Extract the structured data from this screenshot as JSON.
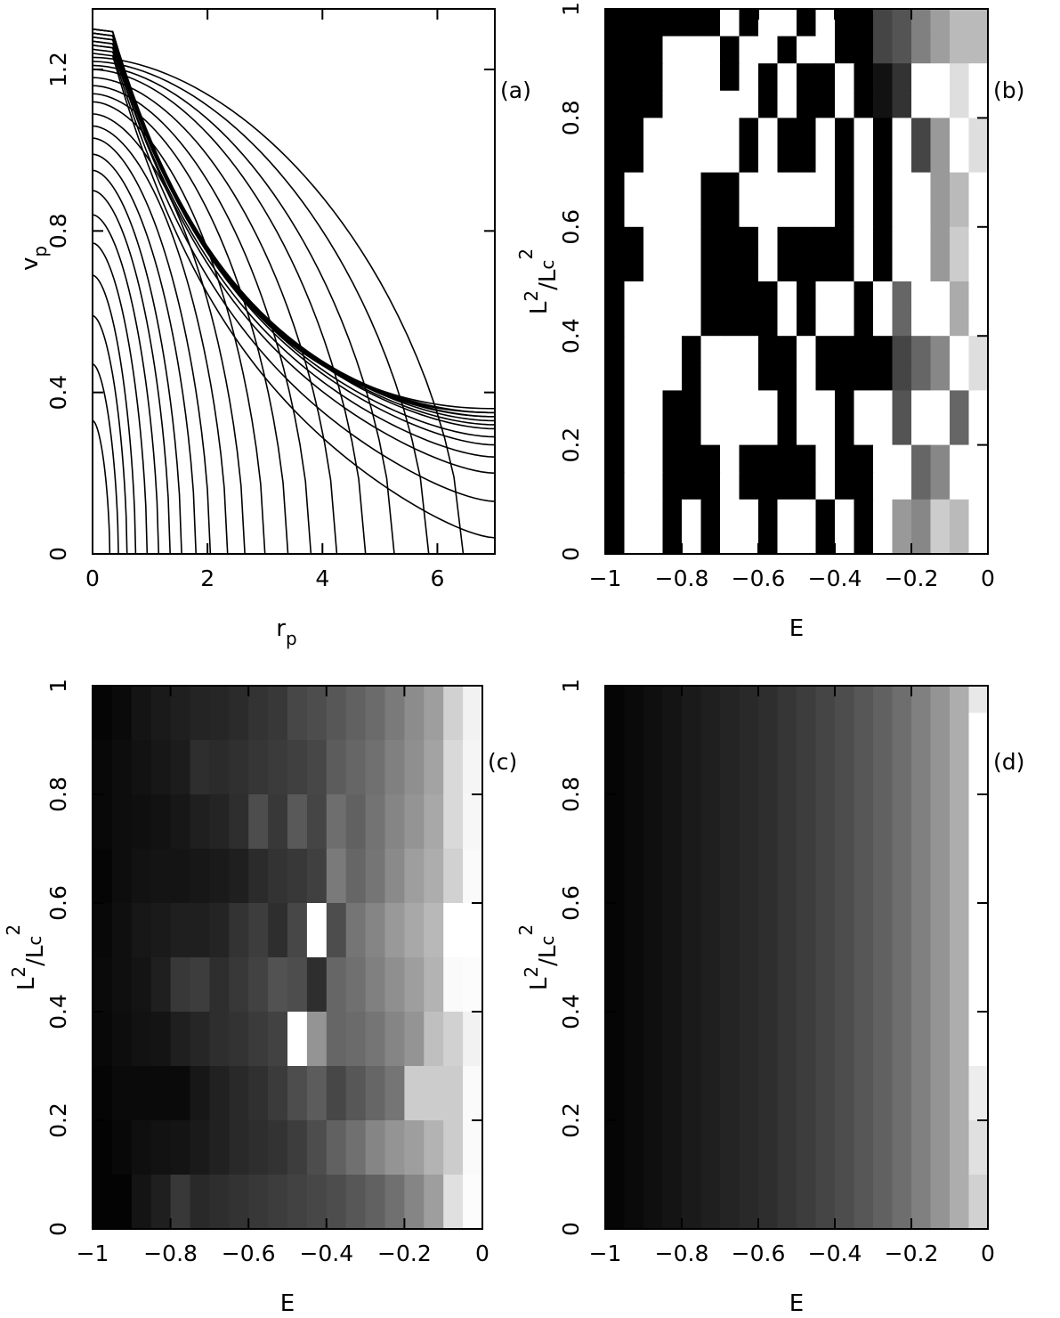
{
  "chart_data": [
    {
      "panel_label": "(a)",
      "type": "line",
      "xlabel_main": "r",
      "xlabel_sub": "p",
      "ylabel_main": "v",
      "ylabel_sub": "p",
      "xlim": [
        0,
        7
      ],
      "ylim": [
        0,
        1.35
      ],
      "xticks": [
        "0",
        "2",
        "4",
        "6"
      ],
      "yticks": [
        "0",
        "0.4",
        "0.8",
        "1.2"
      ],
      "curve_family": {
        "description": "nested decreasing curves, each ending on r axis at r_end (v=0) or on right edge at v_at_r7",
        "v_at_r0": [
          0.33,
          0.47,
          0.59,
          0.69,
          0.77,
          0.84,
          0.9,
          0.95,
          0.99,
          1.03,
          1.06,
          1.09,
          1.12,
          1.14,
          1.16,
          1.18,
          1.2,
          1.21,
          1.22,
          1.23,
          1.24,
          1.25,
          1.26,
          1.26,
          1.27,
          1.27,
          1.28,
          1.28,
          1.29,
          1.29,
          1.29,
          1.3,
          1.3,
          1.3,
          1.3
        ],
        "r_end_on_axis": [
          0.3,
          0.45,
          0.6,
          0.75,
          0.95,
          1.15,
          1.35,
          1.55,
          1.8,
          2.05,
          2.35,
          2.65,
          3.0,
          3.4,
          3.8,
          4.25,
          4.75,
          5.25,
          5.85,
          6.45
        ],
        "v_at_r7_for_remaining": [
          0.04,
          0.13,
          0.2,
          0.24,
          0.27,
          0.29,
          0.31,
          0.32,
          0.33,
          0.34,
          0.34,
          0.35,
          0.35,
          0.35,
          0.36
        ]
      }
    },
    {
      "panel_label": "(b)",
      "type": "heatmap",
      "xlabel": "E",
      "ylabel_main": "L",
      "ylabel_sup1": "2",
      "ylabel_slash": "/L",
      "ylabel_sub": "c",
      "ylabel_sup2": "2",
      "xlim": [
        -1,
        0
      ],
      "ylim": [
        0,
        1
      ],
      "xticks": [
        "−1",
        "−0.8",
        "−0.6",
        "−0.4",
        "−0.2",
        "0"
      ],
      "yticks": [
        "0",
        "0.2",
        "0.4",
        "0.6",
        "0.8",
        "1"
      ],
      "colormap": "grayscale: 0 = black, 1 = white",
      "grid_note": "rows listed from top (L2/Lc2 = 1) to bottom (0); 20 energy bins from E = -1 to 0",
      "z": [
        [
          0,
          0,
          0,
          0,
          0,
          0,
          1,
          0,
          1,
          1,
          0,
          1,
          0,
          0,
          0.27,
          0.33,
          0.5,
          0.62,
          0.73,
          0.73
        ],
        [
          0,
          0,
          0,
          1,
          1,
          1,
          0,
          1,
          1,
          0,
          1,
          1,
          0,
          0,
          0.27,
          0.33,
          0.5,
          0.62,
          0.73,
          0.73
        ],
        [
          0,
          0,
          0,
          1,
          1,
          1,
          0,
          1,
          0,
          1,
          0,
          0,
          1,
          0,
          0.07,
          0.2,
          1,
          1,
          0.87,
          1
        ],
        [
          0,
          0,
          0,
          1,
          1,
          1,
          1,
          1,
          0,
          1,
          0,
          0,
          1,
          0,
          0.07,
          0.2,
          1,
          1,
          0.87,
          1
        ],
        [
          0,
          0,
          1,
          1,
          1,
          1,
          1,
          0,
          1,
          0,
          0,
          1,
          0,
          1,
          0,
          1,
          0.27,
          0.6,
          1,
          0.87
        ],
        [
          0,
          0,
          1,
          1,
          1,
          1,
          1,
          0,
          1,
          0,
          0,
          1,
          0,
          1,
          0,
          1,
          0.27,
          0.6,
          1,
          0.87
        ],
        [
          0,
          1,
          1,
          1,
          1,
          0,
          0,
          1,
          1,
          1,
          1,
          1,
          0,
          1,
          0,
          1,
          1,
          0.6,
          0.73,
          1
        ],
        [
          0,
          1,
          1,
          1,
          1,
          0,
          0,
          1,
          1,
          1,
          1,
          1,
          0,
          1,
          0,
          1,
          1,
          0.6,
          0.73,
          1
        ],
        [
          0,
          0,
          1,
          1,
          1,
          0,
          0,
          0,
          1,
          0,
          0,
          0,
          0,
          1,
          0,
          1,
          1,
          0.6,
          0.8,
          1
        ],
        [
          0,
          0,
          1,
          1,
          1,
          0,
          0,
          0,
          1,
          0,
          0,
          0,
          0,
          1,
          0,
          1,
          1,
          0.6,
          0.8,
          1
        ],
        [
          0,
          1,
          1,
          1,
          1,
          0,
          0,
          0,
          0,
          1,
          0,
          1,
          1,
          0,
          1,
          0.4,
          1,
          1,
          0.67,
          1
        ],
        [
          0,
          1,
          1,
          1,
          1,
          0,
          0,
          0,
          0,
          1,
          0,
          1,
          1,
          0,
          1,
          0.4,
          1,
          1,
          0.67,
          1
        ],
        [
          0,
          1,
          1,
          1,
          0,
          1,
          1,
          1,
          0,
          0,
          1,
          0,
          0,
          0,
          0,
          0.27,
          0.4,
          0.53,
          1,
          0.87
        ],
        [
          0,
          1,
          1,
          1,
          0,
          1,
          1,
          1,
          0,
          0,
          1,
          0,
          0,
          0,
          0,
          0.27,
          0.4,
          0.53,
          1,
          0.87
        ],
        [
          0,
          1,
          1,
          0,
          0,
          1,
          1,
          1,
          1,
          0,
          1,
          1,
          0,
          1,
          1,
          0.33,
          1,
          1,
          0.4,
          1
        ],
        [
          0,
          1,
          1,
          0,
          0,
          1,
          1,
          1,
          1,
          0,
          1,
          1,
          0,
          1,
          1,
          0.33,
          1,
          1,
          0.4,
          1
        ],
        [
          0,
          1,
          1,
          0,
          0,
          0,
          1,
          0,
          0,
          0,
          0,
          1,
          0,
          0,
          1,
          1,
          0.4,
          0.53,
          1,
          1
        ],
        [
          0,
          1,
          1,
          0,
          0,
          0,
          1,
          0,
          0,
          0,
          0,
          1,
          0,
          0,
          1,
          1,
          0.4,
          0.53,
          1,
          1
        ],
        [
          0,
          1,
          1,
          0,
          1,
          0,
          1,
          1,
          0,
          1,
          1,
          0,
          1,
          0,
          1,
          0.6,
          0.53,
          0.8,
          0.73,
          1
        ],
        [
          0,
          1,
          1,
          0,
          1,
          0,
          1,
          1,
          0,
          1,
          1,
          0,
          1,
          0,
          1,
          0.6,
          0.53,
          0.8,
          0.73,
          1
        ]
      ]
    },
    {
      "panel_label": "(c)",
      "type": "heatmap",
      "xlabel": "E",
      "ylabel_main": "L",
      "ylabel_sup1": "2",
      "ylabel_slash": "/L",
      "ylabel_sub": "c",
      "ylabel_sup2": "2",
      "xlim": [
        -1,
        0
      ],
      "ylim": [
        0,
        1
      ],
      "xticks": [
        "−1",
        "−0.8",
        "−0.6",
        "−0.4",
        "−0.2",
        "0"
      ],
      "yticks": [
        "0",
        "0.2",
        "0.4",
        "0.6",
        "0.8",
        "1"
      ],
      "colormap": "grayscale: 0 = black, 1 = white",
      "grid_note": "rows listed from top (L2/Lc2 = 1) to bottom (0); 20 energy bins from E = -1 to 0",
      "z": [
        [
          0.02,
          0.04,
          0.08,
          0.1,
          0.12,
          0.14,
          0.15,
          0.17,
          0.2,
          0.22,
          0.28,
          0.3,
          0.34,
          0.38,
          0.42,
          0.48,
          0.55,
          0.62,
          0.82,
          0.95
        ],
        [
          0.02,
          0.04,
          0.08,
          0.1,
          0.12,
          0.14,
          0.15,
          0.17,
          0.2,
          0.22,
          0.28,
          0.3,
          0.34,
          0.38,
          0.42,
          0.48,
          0.55,
          0.62,
          0.82,
          0.95
        ],
        [
          0.03,
          0.05,
          0.07,
          0.09,
          0.11,
          0.18,
          0.17,
          0.19,
          0.21,
          0.23,
          0.25,
          0.28,
          0.36,
          0.4,
          0.44,
          0.5,
          0.56,
          0.64,
          0.85,
          0.96
        ],
        [
          0.03,
          0.05,
          0.07,
          0.09,
          0.11,
          0.18,
          0.17,
          0.19,
          0.21,
          0.23,
          0.25,
          0.28,
          0.36,
          0.4,
          0.44,
          0.5,
          0.56,
          0.64,
          0.85,
          0.96
        ],
        [
          0.03,
          0.05,
          0.06,
          0.07,
          0.09,
          0.12,
          0.14,
          0.18,
          0.3,
          0.22,
          0.35,
          0.27,
          0.43,
          0.38,
          0.45,
          0.52,
          0.58,
          0.66,
          0.85,
          0.97
        ],
        [
          0.03,
          0.05,
          0.06,
          0.07,
          0.09,
          0.12,
          0.14,
          0.18,
          0.3,
          0.22,
          0.35,
          0.27,
          0.43,
          0.38,
          0.45,
          0.52,
          0.58,
          0.66,
          0.85,
          0.97
        ],
        [
          0.02,
          0.05,
          0.07,
          0.08,
          0.08,
          0.09,
          0.1,
          0.12,
          0.17,
          0.2,
          0.22,
          0.25,
          0.48,
          0.4,
          0.46,
          0.54,
          0.62,
          0.68,
          0.82,
          0.98
        ],
        [
          0.02,
          0.05,
          0.07,
          0.08,
          0.08,
          0.09,
          0.1,
          0.12,
          0.17,
          0.2,
          0.22,
          0.25,
          0.48,
          0.4,
          0.46,
          0.54,
          0.62,
          0.68,
          0.82,
          0.98
        ],
        [
          0.03,
          0.06,
          0.09,
          0.1,
          0.12,
          0.12,
          0.14,
          0.2,
          0.24,
          0.18,
          0.28,
          1.0,
          0.3,
          0.46,
          0.52,
          0.6,
          0.66,
          0.72,
          1.0,
          1.0
        ],
        [
          0.03,
          0.06,
          0.09,
          0.1,
          0.12,
          0.12,
          0.14,
          0.2,
          0.24,
          0.18,
          0.28,
          1.0,
          0.3,
          0.46,
          0.52,
          0.6,
          0.66,
          0.72,
          1.0,
          1.0
        ],
        [
          0.04,
          0.06,
          0.08,
          0.12,
          0.22,
          0.24,
          0.18,
          0.22,
          0.26,
          0.32,
          0.3,
          0.18,
          0.4,
          0.44,
          0.5,
          0.56,
          0.62,
          0.7,
          0.98,
          0.99
        ],
        [
          0.04,
          0.06,
          0.08,
          0.12,
          0.22,
          0.24,
          0.18,
          0.22,
          0.26,
          0.32,
          0.3,
          0.18,
          0.4,
          0.44,
          0.5,
          0.56,
          0.62,
          0.7,
          0.98,
          0.99
        ],
        [
          0.03,
          0.05,
          0.07,
          0.08,
          0.12,
          0.15,
          0.18,
          0.2,
          0.23,
          0.26,
          1.0,
          0.58,
          0.4,
          0.42,
          0.46,
          0.52,
          0.58,
          0.75,
          0.82,
          0.95
        ],
        [
          0.03,
          0.05,
          0.07,
          0.08,
          0.12,
          0.15,
          0.18,
          0.2,
          0.23,
          0.26,
          1.0,
          0.58,
          0.4,
          0.42,
          0.46,
          0.52,
          0.58,
          0.75,
          0.82,
          0.95
        ],
        [
          0.02,
          0.04,
          0.04,
          0.04,
          0.04,
          0.09,
          0.13,
          0.16,
          0.19,
          0.23,
          0.3,
          0.36,
          0.28,
          0.34,
          0.4,
          0.46,
          0.8,
          0.8,
          0.8,
          0.98
        ],
        [
          0.02,
          0.04,
          0.04,
          0.04,
          0.04,
          0.09,
          0.13,
          0.16,
          0.19,
          0.23,
          0.3,
          0.36,
          0.28,
          0.34,
          0.4,
          0.46,
          0.8,
          0.8,
          0.8,
          0.98
        ],
        [
          0.01,
          0.03,
          0.06,
          0.07,
          0.08,
          0.1,
          0.13,
          0.16,
          0.18,
          0.2,
          0.24,
          0.3,
          0.38,
          0.44,
          0.52,
          0.58,
          0.62,
          0.7,
          0.8,
          0.98
        ],
        [
          0.01,
          0.03,
          0.06,
          0.07,
          0.08,
          0.1,
          0.13,
          0.16,
          0.18,
          0.2,
          0.24,
          0.3,
          0.38,
          0.44,
          0.52,
          0.58,
          0.62,
          0.7,
          0.8,
          0.98
        ],
        [
          0.01,
          0.01,
          0.08,
          0.12,
          0.22,
          0.16,
          0.18,
          0.2,
          0.22,
          0.24,
          0.26,
          0.28,
          0.3,
          0.34,
          0.38,
          0.44,
          0.52,
          0.62,
          0.88,
          0.99
        ],
        [
          0.01,
          0.01,
          0.08,
          0.12,
          0.22,
          0.16,
          0.18,
          0.2,
          0.22,
          0.24,
          0.26,
          0.28,
          0.3,
          0.34,
          0.38,
          0.44,
          0.52,
          0.62,
          0.88,
          0.99
        ]
      ]
    },
    {
      "panel_label": "(d)",
      "type": "heatmap",
      "xlabel": "E",
      "ylabel_main": "L",
      "ylabel_sup1": "2",
      "ylabel_slash": "/L",
      "ylabel_sub": "c",
      "ylabel_sup2": "2",
      "xlim": [
        -1,
        0
      ],
      "ylim": [
        0,
        1
      ],
      "xticks": [
        "−1",
        "−0.8",
        "−0.6",
        "−0.4",
        "−0.2",
        "0"
      ],
      "yticks": [
        "0",
        "0.2",
        "0.4",
        "0.6",
        "0.8",
        "1"
      ],
      "colormap": "grayscale: 0 = black, 1 = white",
      "grid_note": "intensity depends on energy only; top-right bin lighter gray",
      "column_values": [
        0.02,
        0.04,
        0.06,
        0.08,
        0.1,
        0.12,
        0.14,
        0.16,
        0.18,
        0.21,
        0.24,
        0.27,
        0.3,
        0.34,
        0.38,
        0.43,
        0.5,
        0.58,
        0.68,
        0.82
      ],
      "last_column_by_row_top_to_bottom": [
        0.91,
        1.0,
        1.0,
        1.0,
        1.0,
        1.0,
        1.0,
        1.0,
        1.0,
        1.0,
        1.0,
        1.0,
        1.0,
        1.0,
        0.93,
        0.93,
        0.88,
        0.88,
        0.82,
        0.82
      ]
    }
  ]
}
